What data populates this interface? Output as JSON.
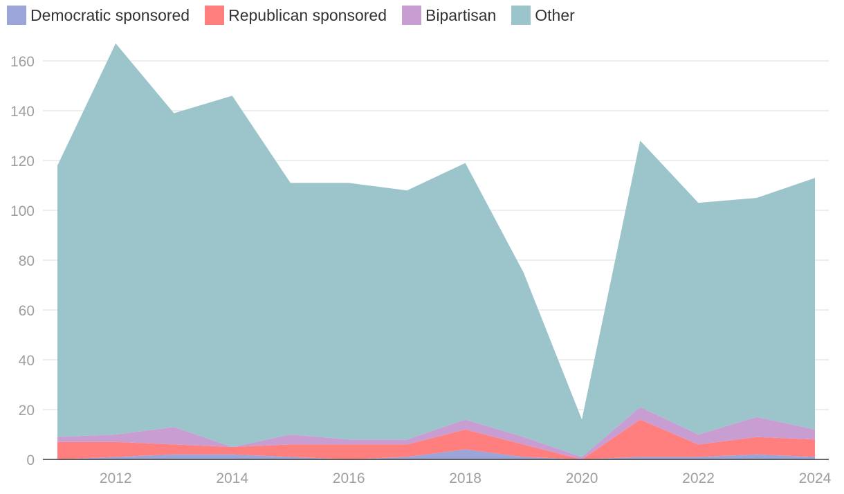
{
  "chart_data": {
    "type": "area",
    "stacked": true,
    "x": [
      2011,
      2012,
      2013,
      2014,
      2015,
      2016,
      2017,
      2018,
      2019,
      2020,
      2021,
      2022,
      2023,
      2024
    ],
    "x_ticks": [
      "2012",
      "2014",
      "2016",
      "2018",
      "2020",
      "2022",
      "2024"
    ],
    "y_ticks": [
      "0",
      "20",
      "40",
      "60",
      "80",
      "100",
      "120",
      "140",
      "160"
    ],
    "ylim": [
      0,
      170
    ],
    "legend_position": "top-left",
    "grid": true,
    "series": [
      {
        "name": "Democratic sponsored",
        "color": "#9ba5d8",
        "values": [
          0,
          1,
          2,
          2,
          1,
          0,
          1,
          4,
          1,
          0,
          1,
          1,
          2,
          1
        ]
      },
      {
        "name": "Republican sponsored",
        "color": "#ff7f7f",
        "values": [
          7,
          6,
          4,
          3,
          5,
          6,
          5,
          8,
          5,
          0,
          15,
          5,
          7,
          7
        ]
      },
      {
        "name": "Bipartisan",
        "color": "#c89ed2",
        "values": [
          2,
          3,
          7,
          0,
          4,
          2,
          2,
          4,
          3,
          1,
          5,
          4,
          8,
          4
        ]
      },
      {
        "name": "Other",
        "color": "#9cc4cb",
        "values": [
          109,
          157,
          126,
          141,
          101,
          103,
          100,
          103,
          66,
          15,
          107,
          93,
          88,
          101
        ]
      }
    ],
    "title": "",
    "xlabel": "",
    "ylabel": ""
  }
}
